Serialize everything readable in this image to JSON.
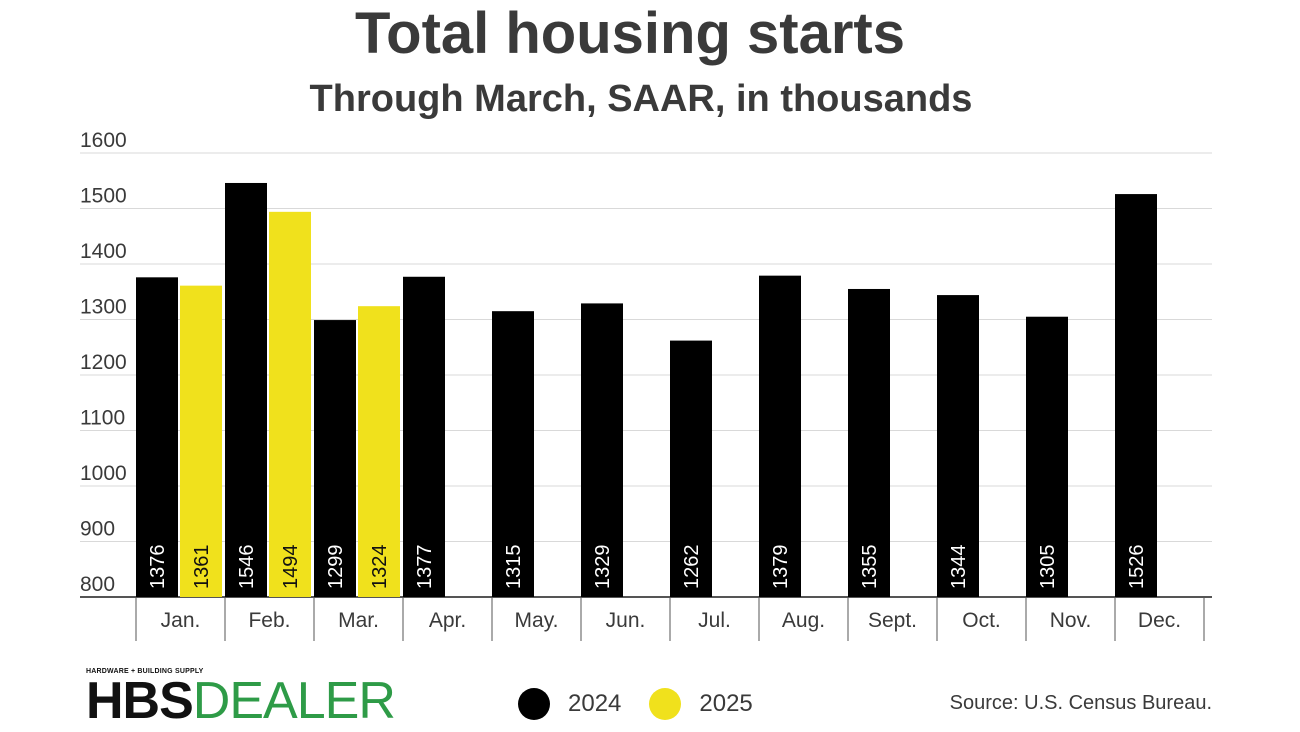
{
  "header": {
    "title": "Total housing starts",
    "subtitle": "Through March, SAAR, in thousands"
  },
  "chart_data": {
    "type": "bar",
    "title": "Total housing starts",
    "subtitle": "Through March, SAAR, in thousands",
    "xlabel": "",
    "ylabel": "",
    "ylim": [
      800,
      1600
    ],
    "yticks": [
      800,
      900,
      1000,
      1100,
      1200,
      1300,
      1400,
      1500,
      1600
    ],
    "grid": true,
    "categories": [
      "Jan.",
      "Feb.",
      "Mar.",
      "Apr.",
      "May.",
      "Jun.",
      "Jul.",
      "Aug.",
      "Sept.",
      "Oct.",
      "Nov.",
      "Dec."
    ],
    "series": [
      {
        "name": "2024",
        "color": "#000000",
        "values": [
          1376,
          1546,
          1299,
          1377,
          1315,
          1329,
          1262,
          1379,
          1355,
          1344,
          1305,
          1526
        ]
      },
      {
        "name": "2025",
        "color": "#f0e11c",
        "values": [
          1361,
          1494,
          1324,
          null,
          null,
          null,
          null,
          null,
          null,
          null,
          null,
          null
        ]
      }
    ],
    "legend_position": "bottom"
  },
  "footer": {
    "logo_small": "HARDWARE + BUILDING SUPPLY",
    "logo_hbs": "HBS",
    "logo_dealer": "DEALER",
    "legend_2024": "2024",
    "legend_2025": "2025",
    "source": "Source: U.S. Census Bureau."
  },
  "colors": {
    "text": "#3a3a3a",
    "bar_2024": "#000000",
    "bar_2025": "#f0e11c",
    "gridline": "#d9d9d9",
    "axis": "#555555",
    "brand_green": "#2e9b47"
  }
}
